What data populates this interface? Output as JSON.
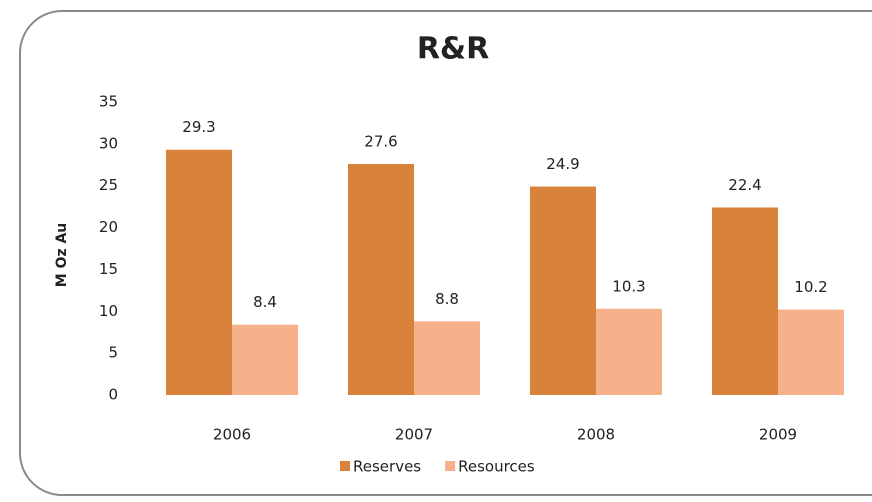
{
  "chart_data": {
    "type": "bar",
    "title": "R&R",
    "y_label": "M Oz Au",
    "categories": [
      "2006",
      "2007",
      "2008",
      "2009"
    ],
    "series": [
      {
        "name": "Reserves",
        "color": "#d9823b",
        "values": [
          29.3,
          27.6,
          24.9,
          22.4
        ]
      },
      {
        "name": "Resources",
        "color": "#f7b08c",
        "values": [
          8.4,
          8.8,
          10.3,
          10.2
        ]
      }
    ],
    "ylim": [
      0,
      35
    ],
    "yticks": [
      0,
      5,
      10,
      15,
      20,
      25,
      30,
      35
    ],
    "grid": false,
    "legend": "bottom"
  }
}
